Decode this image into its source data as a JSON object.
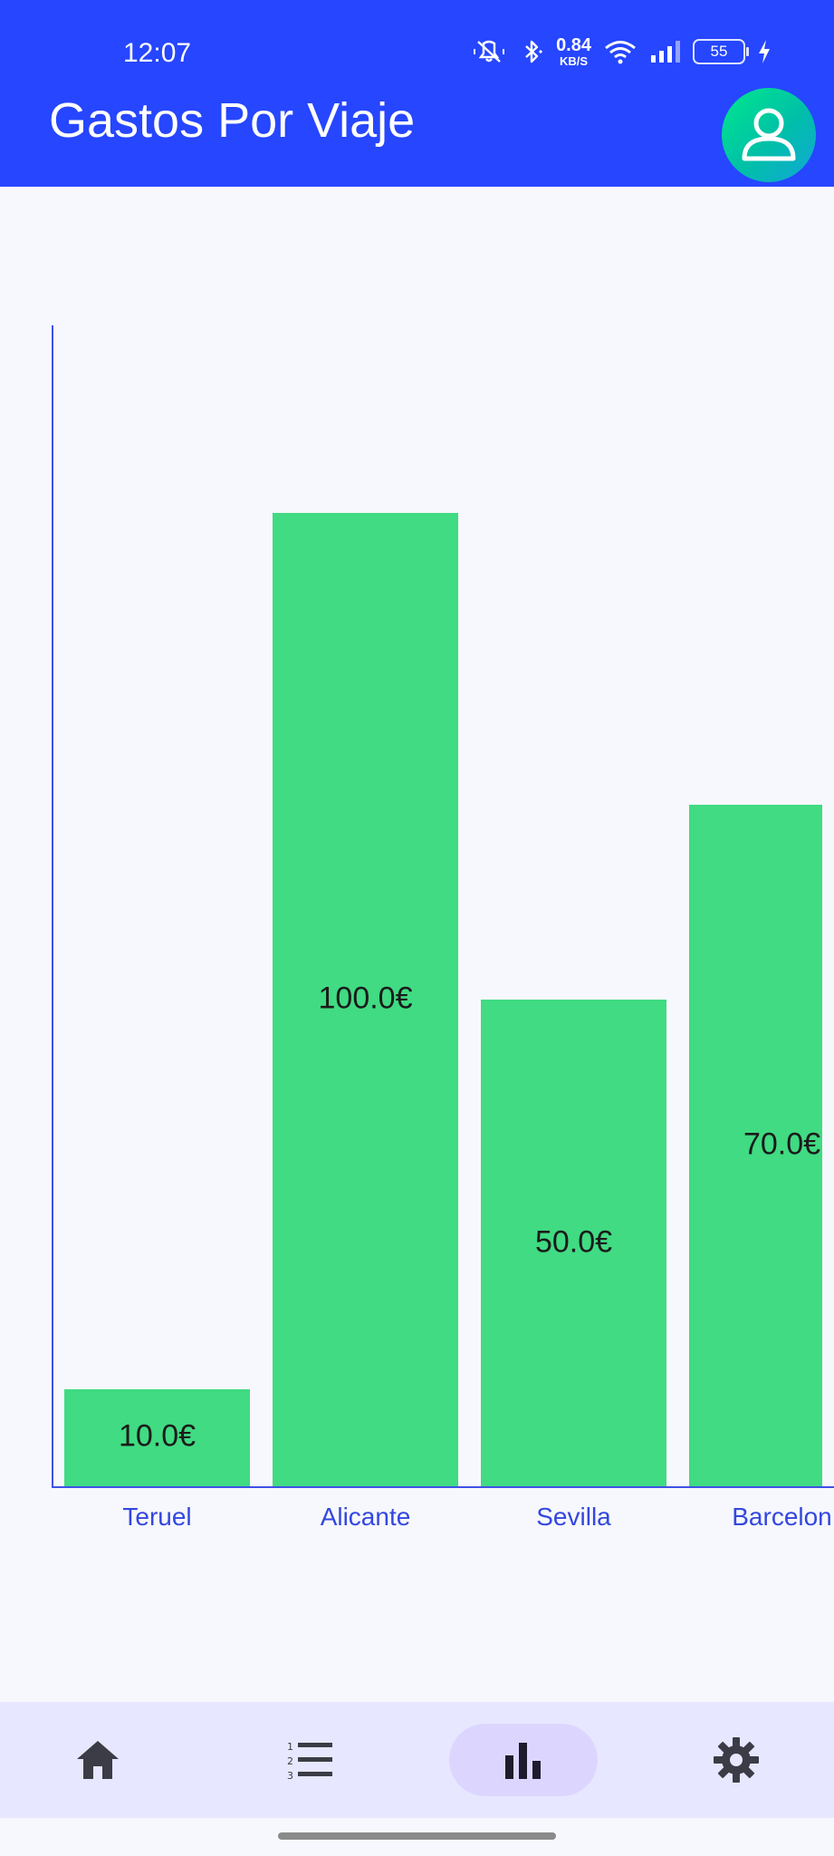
{
  "status_bar": {
    "time": "12:07",
    "net_speed_value": "0.84",
    "net_speed_unit": "KB/S",
    "battery": "55",
    "icons": [
      "mute-icon",
      "bluetooth-icon",
      "wifi-icon",
      "signal-icon",
      "charging-icon"
    ]
  },
  "app_bar": {
    "title": "Gastos Por Viaje",
    "avatar_icon": "person-icon"
  },
  "chart_data": {
    "type": "bar",
    "categories": [
      "Teruel",
      "Alicante",
      "Sevilla",
      "Barcelon"
    ],
    "values": [
      10.0,
      100.0,
      50.0,
      70.0
    ],
    "data_labels": [
      "10.0€",
      "100.0€",
      "50.0€",
      "70.0€"
    ],
    "ylim": [
      0,
      100
    ],
    "grid": false,
    "bar_color": "#40DB82",
    "axis_color": "#3F51E6"
  },
  "bottom_nav": {
    "items": [
      {
        "icon": "home-icon",
        "active": false
      },
      {
        "icon": "numbered-list-icon",
        "active": false
      },
      {
        "icon": "bar-chart-icon",
        "active": true
      },
      {
        "icon": "settings-gear-icon",
        "active": false
      }
    ]
  },
  "colors": {
    "app_bar": "#2646FF",
    "background": "#F7F8FD",
    "nav_background": "#E7E7FF",
    "nav_active_pill": "#DCD6FF",
    "nav_icon": "#3C3C46"
  }
}
